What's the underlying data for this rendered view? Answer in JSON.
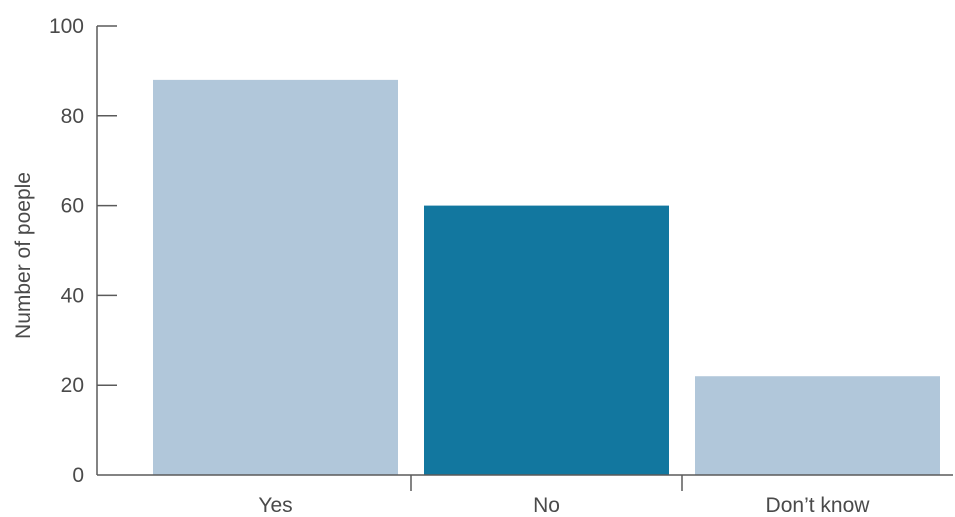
{
  "chart_data": {
    "type": "bar",
    "categories": [
      "Yes",
      "No",
      "Don’t know"
    ],
    "values": [
      88,
      60,
      22
    ],
    "bar_colors": [
      "#b1c7da",
      "#12779f",
      "#b1c7da"
    ],
    "title": "",
    "xlabel": "",
    "ylabel": "Number of poeple",
    "ylim": [
      0,
      100
    ],
    "yticks": [
      0,
      20,
      40,
      60,
      80,
      100
    ],
    "grid": false
  }
}
